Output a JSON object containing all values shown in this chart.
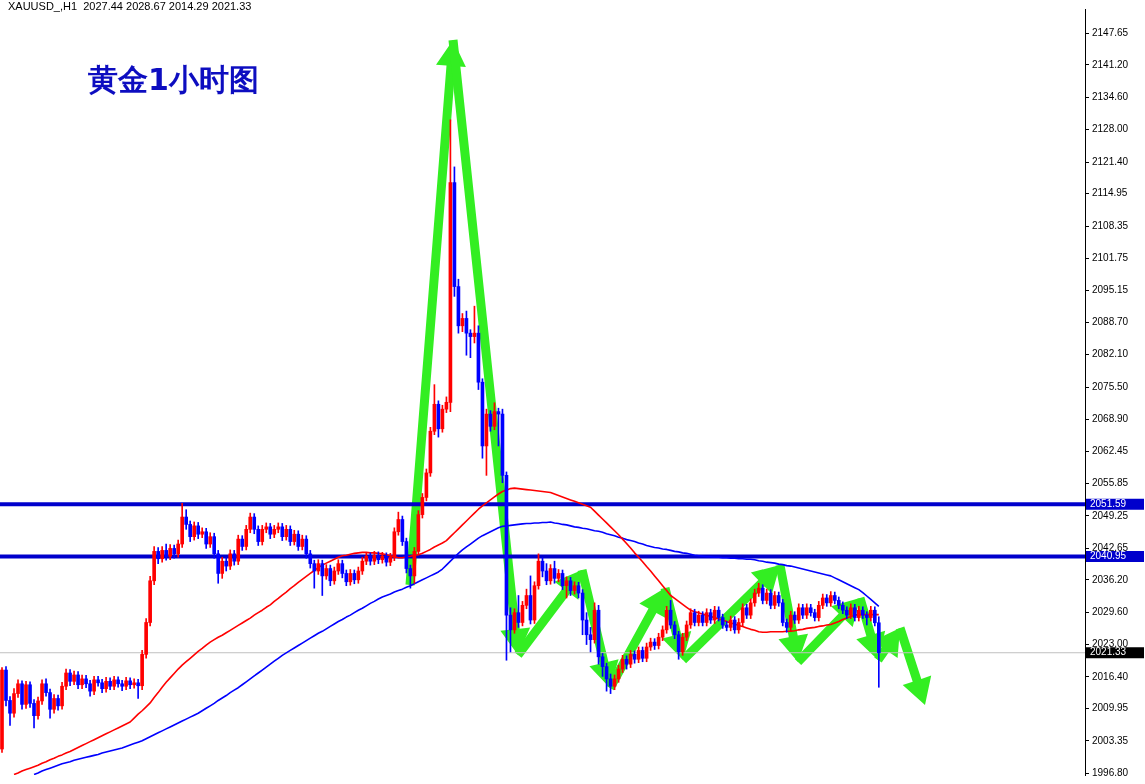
{
  "chart_data": {
    "type": "candlestick",
    "title": "黄金1小时图",
    "subtitle": "XAUUSD_,H1  2027.44 2028.67 2014.29 2021.33",
    "tick_labels": "y",
    "marker": "none",
    "ylim": [
      1996.4,
      2152.6
    ],
    "yticks": [
      {
        "value": 1996.8,
        "label": "1996.80"
      },
      {
        "value": 2003.35,
        "label": "2003.35"
      },
      {
        "value": 2009.95,
        "label": "2009.95"
      },
      {
        "value": 2016.4,
        "label": "2016.40"
      },
      {
        "value": 2023,
        "label": "2023.00"
      },
      {
        "value": 2029.6,
        "label": "2029.60"
      },
      {
        "value": 2036.2,
        "label": "2036.20"
      },
      {
        "value": 2042.65,
        "label": "2042.65"
      },
      {
        "value": 2049.25,
        "label": "2049.25"
      },
      {
        "value": 2055.85,
        "label": "2055.85"
      },
      {
        "value": 2062.45,
        "label": "2062.45"
      },
      {
        "value": 2068.9,
        "label": "2068.90"
      },
      {
        "value": 2075.5,
        "label": "2075.50"
      },
      {
        "value": 2082.1,
        "label": "2082.10"
      },
      {
        "value": 2088.7,
        "label": "2088.70"
      },
      {
        "value": 2095.15,
        "label": "2095.15"
      },
      {
        "value": 2101.75,
        "label": "2101.75"
      },
      {
        "value": 2108.35,
        "label": "2108.35"
      },
      {
        "value": 2114.95,
        "label": "2114.95"
      },
      {
        "value": 2121.4,
        "label": "2121.40"
      },
      {
        "value": 2128,
        "label": "2128.00"
      },
      {
        "value": 2134.6,
        "label": "2134.60"
      },
      {
        "value": 2141.2,
        "label": "2141.20"
      },
      {
        "value": 2147.65,
        "label": "2147.65"
      }
    ],
    "ref_lines": [
      {
        "axis": "y",
        "value": 2051.59,
        "label": "2051.59",
        "color": "#0000cc"
      },
      {
        "axis": "y",
        "value": 2040.95,
        "label": "2040.95",
        "color": "#0000cc"
      },
      {
        "axis": "y",
        "value": 2021.33,
        "label": "2021.33",
        "color": "#c0c0c0"
      }
    ],
    "categories": [
      null,
      null,
      null,
      null,
      null,
      null,
      null,
      null,
      null,
      null,
      null,
      null,
      null,
      null,
      null,
      null,
      null,
      null,
      null,
      null,
      null,
      null,
      null,
      null,
      null,
      null,
      null,
      null,
      null,
      null,
      null,
      null,
      null,
      null,
      null,
      null,
      null,
      null,
      null,
      null,
      null,
      null,
      null,
      null,
      null,
      null,
      null,
      null,
      null,
      null,
      null,
      null,
      null,
      null,
      null,
      null,
      null,
      null,
      null,
      null,
      null,
      null,
      null,
      null,
      null,
      null,
      null,
      null,
      null,
      null,
      null,
      null,
      null,
      null,
      null,
      null,
      null,
      null,
      null,
      null,
      null,
      null,
      null,
      null,
      null,
      null,
      null,
      null,
      null,
      null,
      null,
      null,
      null,
      null,
      null,
      null,
      null,
      null,
      null,
      null,
      null,
      null,
      null,
      null,
      null,
      null,
      null,
      null,
      null,
      null,
      null,
      null,
      null,
      null,
      null,
      null,
      null,
      null,
      null,
      null,
      null,
      null,
      null,
      null,
      null,
      null,
      null,
      null,
      null,
      null,
      null,
      null,
      null,
      null,
      null,
      null,
      null,
      null,
      null,
      null,
      null,
      null,
      null,
      null,
      null,
      null,
      null,
      null,
      null,
      null,
      null,
      null,
      null,
      null,
      null,
      null,
      null,
      null,
      null,
      null,
      null,
      null,
      null,
      null,
      null,
      null,
      null,
      null,
      null,
      null,
      null,
      null,
      null,
      null,
      null,
      null,
      null,
      null,
      null,
      null,
      null,
      null,
      null,
      null,
      null,
      null,
      null,
      null,
      null,
      null,
      null,
      null,
      null,
      null,
      null,
      null,
      null,
      null,
      null,
      null,
      null,
      null,
      null,
      null,
      null,
      null,
      null,
      null,
      null,
      null,
      null,
      null,
      null,
      null,
      null,
      null,
      null,
      null,
      null,
      null,
      null,
      null,
      null,
      null,
      null,
      null,
      null,
      null,
      null,
      null,
      null,
      null,
      null,
      null,
      null,
      null,
      null,
      null,
      null,
      null,
      null,
      null,
      null,
      null,
      null,
      null,
      null,
      null,
      null,
      null,
      null,
      null,
      null,
      null,
      null,
      null,
      null,
      null,
      null,
      null,
      null,
      null,
      null,
      null,
      null,
      null,
      null,
      null,
      null,
      null,
      null
    ],
    "ohlc": [
      [
        2001.7,
        2018.3,
        2001.0,
        2017.8
      ],
      [
        2017.8,
        2018.5,
        2010.5,
        2011.6
      ],
      [
        2011.6,
        2012.4,
        2006.5,
        2009.0
      ],
      [
        2009.0,
        2014.0,
        2008.2,
        2013.0
      ],
      [
        2013.0,
        2015.8,
        2012.2,
        2015.0
      ],
      [
        2015.0,
        2015.6,
        2009.8,
        2010.8
      ],
      [
        2010.8,
        2015.5,
        2010.0,
        2014.8
      ],
      [
        2014.8,
        2015.4,
        2010.2,
        2011.0
      ],
      [
        2011.0,
        2011.8,
        2006.0,
        2008.5
      ],
      [
        2008.5,
        2012.3,
        2007.8,
        2011.5
      ],
      [
        2011.5,
        2015.8,
        2010.8,
        2015.0
      ],
      [
        2015.0,
        2016.0,
        2012.5,
        2013.2
      ],
      [
        2013.2,
        2013.9,
        2008.0,
        2009.8
      ],
      [
        2009.8,
        2012.8,
        2009.0,
        2012.0
      ],
      [
        2012.0,
        2012.7,
        2009.6,
        2010.5
      ],
      [
        2010.5,
        2015.3,
        2009.8,
        2014.5
      ],
      [
        2014.5,
        2018.0,
        2013.8,
        2017.2
      ],
      [
        2017.2,
        2017.9,
        2014.6,
        2015.5
      ],
      [
        2015.5,
        2017.6,
        2014.8,
        2016.8
      ],
      [
        2016.8,
        2017.5,
        2014.0,
        2014.8
      ],
      [
        2014.8,
        2016.8,
        2014.0,
        2016.0
      ],
      [
        2016.0,
        2016.7,
        2014.2,
        2015.0
      ],
      [
        2015.0,
        2015.7,
        2012.5,
        2013.5
      ],
      [
        2013.5,
        2016.5,
        2012.8,
        2015.8
      ],
      [
        2015.8,
        2016.5,
        2014.5,
        2015.2
      ],
      [
        2015.2,
        2015.9,
        2013.2,
        2014.0
      ],
      [
        2014.0,
        2016.3,
        2013.3,
        2015.5
      ],
      [
        2015.5,
        2016.2,
        2013.8,
        2014.5
      ],
      [
        2014.5,
        2016.5,
        2013.8,
        2015.8
      ],
      [
        2015.8,
        2016.4,
        2014.3,
        2015.0
      ],
      [
        2015.0,
        2015.7,
        2013.6,
        2014.5
      ],
      [
        2014.5,
        2016.3,
        2013.8,
        2015.6
      ],
      [
        2015.6,
        2016.2,
        2014.0,
        2014.8
      ],
      [
        2014.8,
        2016.0,
        2014.1,
        2015.2
      ],
      [
        2015.2,
        2015.9,
        2012.0,
        2014.6
      ],
      [
        2014.6,
        2021.8,
        2013.8,
        2021.0
      ],
      [
        2021.0,
        2028.3,
        2020.2,
        2027.5
      ],
      [
        2027.5,
        2036.9,
        2026.8,
        2036.0
      ],
      [
        2036.0,
        2043.0,
        2035.2,
        2042.0
      ],
      [
        2042.0,
        2042.8,
        2039.5,
        2040.5
      ],
      [
        2040.5,
        2043.0,
        2039.8,
        2042.2
      ],
      [
        2042.2,
        2043.5,
        2040.2,
        2041.0
      ],
      [
        2041.0,
        2043.4,
        2040.3,
        2042.6
      ],
      [
        2042.6,
        2043.3,
        2040.6,
        2041.5
      ],
      [
        2041.5,
        2044.3,
        2040.8,
        2043.5
      ],
      [
        2043.5,
        2051.8,
        2042.8,
        2049.0
      ],
      [
        2049.0,
        2050.5,
        2046.5,
        2047.5
      ],
      [
        2047.5,
        2048.2,
        2044.0,
        2045.0
      ],
      [
        2045.0,
        2048.0,
        2044.3,
        2047.2
      ],
      [
        2047.2,
        2047.9,
        2044.6,
        2045.5
      ],
      [
        2045.5,
        2046.8,
        2044.8,
        2046.0
      ],
      [
        2046.0,
        2046.7,
        2042.6,
        2043.5
      ],
      [
        2043.5,
        2045.8,
        2042.8,
        2045.0
      ],
      [
        2045.0,
        2045.7,
        2040.6,
        2041.5
      ],
      [
        2041.5,
        2042.2,
        2035.5,
        2037.5
      ],
      [
        2037.5,
        2040.8,
        2036.5,
        2040.0
      ],
      [
        2040.0,
        2040.7,
        2038.0,
        2039.0
      ],
      [
        2039.0,
        2042.3,
        2038.3,
        2041.5
      ],
      [
        2041.5,
        2042.2,
        2039.2,
        2040.0
      ],
      [
        2040.0,
        2045.3,
        2039.3,
        2044.5
      ],
      [
        2044.5,
        2045.2,
        2042.2,
        2043.0
      ],
      [
        2043.0,
        2047.3,
        2042.3,
        2046.5
      ],
      [
        2046.5,
        2049.8,
        2045.8,
        2049.0
      ],
      [
        2049.0,
        2049.7,
        2045.6,
        2046.5
      ],
      [
        2046.5,
        2047.2,
        2043.2,
        2044.0
      ],
      [
        2044.0,
        2047.3,
        2043.3,
        2046.5
      ],
      [
        2046.5,
        2047.8,
        2045.8,
        2047.0
      ],
      [
        2047.0,
        2047.7,
        2044.6,
        2045.5
      ],
      [
        2045.5,
        2047.3,
        2044.8,
        2046.5
      ],
      [
        2046.5,
        2047.8,
        2045.8,
        2047.0
      ],
      [
        2047.0,
        2047.7,
        2044.2,
        2045.0
      ],
      [
        2045.0,
        2047.3,
        2044.3,
        2046.5
      ],
      [
        2046.5,
        2047.2,
        2043.2,
        2044.0
      ],
      [
        2044.0,
        2046.3,
        2043.3,
        2045.5
      ],
      [
        2045.5,
        2046.2,
        2042.2,
        2043.0
      ],
      [
        2043.0,
        2045.3,
        2042.3,
        2044.5
      ],
      [
        2044.5,
        2045.2,
        2040.6,
        2041.5
      ],
      [
        2041.5,
        2042.2,
        2038.6,
        2039.5
      ],
      [
        2039.5,
        2040.2,
        2034.5,
        2038.0
      ],
      [
        2038.0,
        2040.3,
        2037.3,
        2039.5
      ],
      [
        2039.5,
        2040.2,
        2033.0,
        2037.0
      ],
      [
        2037.0,
        2039.3,
        2036.3,
        2038.5
      ],
      [
        2038.5,
        2039.2,
        2035.0,
        2036.0
      ],
      [
        2036.0,
        2038.8,
        2035.3,
        2038.0
      ],
      [
        2038.0,
        2040.3,
        2037.3,
        2039.5
      ],
      [
        2039.5,
        2040.2,
        2036.6,
        2037.5
      ],
      [
        2037.5,
        2038.2,
        2035.0,
        2035.8
      ],
      [
        2035.8,
        2038.3,
        2035.1,
        2037.5
      ],
      [
        2037.5,
        2038.2,
        2035.4,
        2036.2
      ],
      [
        2036.2,
        2038.8,
        2035.5,
        2038.0
      ],
      [
        2038.0,
        2040.8,
        2037.3,
        2040.0
      ],
      [
        2040.0,
        2041.8,
        2039.3,
        2041.0
      ],
      [
        2041.0,
        2041.7,
        2039.2,
        2040.0
      ],
      [
        2040.0,
        2042.0,
        2039.3,
        2041.2
      ],
      [
        2041.2,
        2041.9,
        2039.5,
        2040.3
      ],
      [
        2040.3,
        2041.8,
        2039.6,
        2041.0
      ],
      [
        2041.0,
        2041.7,
        2039.0,
        2039.8
      ],
      [
        2039.8,
        2041.6,
        2039.1,
        2040.8
      ],
      [
        2040.8,
        2046.8,
        2040.1,
        2046.0
      ],
      [
        2046.0,
        2050.0,
        2045.3,
        2048.5
      ],
      [
        2048.5,
        2049.2,
        2043.2,
        2044.0
      ],
      [
        2044.0,
        2044.7,
        2037.6,
        2038.5
      ],
      [
        2038.5,
        2039.2,
        2034.5,
        2037.0
      ],
      [
        2037.0,
        2042.8,
        2035.5,
        2042.0
      ],
      [
        2042.0,
        2050.3,
        2041.3,
        2049.5
      ],
      [
        2049.5,
        2053.8,
        2048.8,
        2053.0
      ],
      [
        2053.0,
        2058.8,
        2052.3,
        2058.0
      ],
      [
        2058.0,
        2067.3,
        2057.3,
        2066.5
      ],
      [
        2066.5,
        2076.0,
        2065.8,
        2072.0
      ],
      [
        2072.0,
        2072.7,
        2065.3,
        2067.0
      ],
      [
        2067.0,
        2071.8,
        2066.3,
        2071.0
      ],
      [
        2071.0,
        2073.5,
        2070.3,
        2072.4
      ],
      [
        2072.4,
        2130.0,
        2070.5,
        2117.2
      ],
      [
        2117.2,
        2120.4,
        2094.0,
        2096.0
      ],
      [
        2096.0,
        2097.5,
        2086.5,
        2088.0
      ],
      [
        2088.0,
        2090.5,
        2086.8,
        2089.5
      ],
      [
        2089.5,
        2091.0,
        2082.0,
        2086.5
      ],
      [
        2086.5,
        2087.2,
        2081.5,
        2085.8
      ],
      [
        2085.8,
        2092.0,
        2084.5,
        2086.5
      ],
      [
        2086.5,
        2088.0,
        2075.0,
        2076.5
      ],
      [
        2076.5,
        2077.2,
        2061.0,
        2063.5
      ],
      [
        2063.5,
        2071.0,
        2057.5,
        2070.0
      ],
      [
        2070.0,
        2070.7,
        2066.5,
        2067.5
      ],
      [
        2067.5,
        2072.3,
        2066.8,
        2070.5
      ],
      [
        2070.5,
        2071.2,
        2063.5,
        2070.0
      ],
      [
        2070.0,
        2071.0,
        2056.0,
        2057.5
      ],
      [
        2057.5,
        2058.2,
        2019.8,
        2029.0
      ],
      [
        2029.0,
        2030.5,
        2021.5,
        2026.0
      ],
      [
        2026.0,
        2030.3,
        2025.3,
        2029.5
      ],
      [
        2029.5,
        2033.0,
        2026.5,
        2027.5
      ],
      [
        2027.5,
        2031.8,
        2026.8,
        2031.0
      ],
      [
        2031.0,
        2034.3,
        2030.3,
        2033.0
      ],
      [
        2033.0,
        2037.0,
        2027.2,
        2028.0
      ],
      [
        2028.0,
        2035.8,
        2027.3,
        2035.0
      ],
      [
        2035.0,
        2041.5,
        2034.3,
        2040.0
      ],
      [
        2040.0,
        2040.7,
        2036.8,
        2038.0
      ],
      [
        2038.0,
        2039.5,
        2035.2,
        2036.0
      ],
      [
        2036.0,
        2039.3,
        2035.3,
        2038.5
      ],
      [
        2038.5,
        2040.0,
        2035.5,
        2036.5
      ],
      [
        2036.5,
        2038.3,
        2035.8,
        2037.5
      ],
      [
        2037.5,
        2038.2,
        2034.2,
        2035.0
      ],
      [
        2035.0,
        2036.8,
        2032.5,
        2036.0
      ],
      [
        2036.0,
        2036.7,
        2033.0,
        2034.0
      ],
      [
        2034.0,
        2035.8,
        2033.3,
        2035.0
      ],
      [
        2035.0,
        2035.7,
        2032.5,
        2033.5
      ],
      [
        2033.5,
        2034.2,
        2025.0,
        2028.0
      ],
      [
        2028.0,
        2029.5,
        2023.0,
        2025.0
      ],
      [
        2025.0,
        2026.5,
        2021.5,
        2024.0
      ],
      [
        2024.0,
        2031.5,
        2023.3,
        2030.0
      ],
      [
        2030.0,
        2031.0,
        2019.0,
        2020.5
      ],
      [
        2020.5,
        2021.2,
        2016.5,
        2018.5
      ],
      [
        2018.5,
        2019.2,
        2013.5,
        2016.0
      ],
      [
        2016.0,
        2017.0,
        2013.0,
        2014.5
      ],
      [
        2014.5,
        2016.8,
        2013.8,
        2016.0
      ],
      [
        2016.0,
        2018.8,
        2015.3,
        2018.0
      ],
      [
        2018.0,
        2020.8,
        2017.3,
        2020.0
      ],
      [
        2020.0,
        2020.7,
        2018.0,
        2019.0
      ],
      [
        2019.0,
        2021.8,
        2018.3,
        2021.0
      ],
      [
        2021.0,
        2021.7,
        2019.2,
        2020.0
      ],
      [
        2020.0,
        2022.5,
        2019.3,
        2021.8
      ],
      [
        2021.8,
        2022.5,
        2019.5,
        2020.2
      ],
      [
        2020.2,
        2023.3,
        2019.5,
        2022.5
      ],
      [
        2022.5,
        2024.3,
        2021.8,
        2023.5
      ],
      [
        2023.5,
        2024.2,
        2022.0,
        2022.8
      ],
      [
        2022.8,
        2025.3,
        2022.1,
        2024.5
      ],
      [
        2024.5,
        2026.8,
        2023.8,
        2026.0
      ],
      [
        2026.0,
        2030.8,
        2025.3,
        2030.0
      ],
      [
        2030.0,
        2032.0,
        2026.3,
        2027.0
      ],
      [
        2027.0,
        2027.7,
        2024.2,
        2025.0
      ],
      [
        2025.0,
        2025.7,
        2020.0,
        2021.5
      ],
      [
        2021.5,
        2025.3,
        2020.8,
        2024.5
      ],
      [
        2024.5,
        2027.8,
        2023.8,
        2027.0
      ],
      [
        2027.0,
        2030.3,
        2026.3,
        2029.5
      ],
      [
        2029.5,
        2030.2,
        2026.8,
        2027.5
      ],
      [
        2027.5,
        2029.8,
        2026.8,
        2029.0
      ],
      [
        2029.0,
        2029.7,
        2026.8,
        2027.5
      ],
      [
        2027.5,
        2030.3,
        2026.8,
        2029.5
      ],
      [
        2029.5,
        2030.2,
        2027.3,
        2028.0
      ],
      [
        2028.0,
        2030.8,
        2027.3,
        2030.0
      ],
      [
        2030.0,
        2030.7,
        2027.8,
        2028.5
      ],
      [
        2028.5,
        2029.2,
        2026.3,
        2027.0
      ],
      [
        2027.0,
        2027.7,
        2025.8,
        2026.5
      ],
      [
        2026.5,
        2028.8,
        2025.8,
        2028.0
      ],
      [
        2028.0,
        2028.7,
        2025.3,
        2026.0
      ],
      [
        2026.0,
        2028.3,
        2025.3,
        2027.5
      ],
      [
        2027.5,
        2031.3,
        2026.8,
        2030.5
      ],
      [
        2030.5,
        2031.2,
        2028.3,
        2029.0
      ],
      [
        2029.0,
        2032.3,
        2028.3,
        2031.5
      ],
      [
        2031.5,
        2034.3,
        2030.8,
        2033.5
      ],
      [
        2033.5,
        2035.5,
        2032.8,
        2034.5
      ],
      [
        2034.5,
        2035.2,
        2031.3,
        2032.0
      ],
      [
        2032.0,
        2034.3,
        2031.3,
        2033.5
      ],
      [
        2033.5,
        2034.2,
        2030.3,
        2031.0
      ],
      [
        2031.0,
        2033.8,
        2030.3,
        2033.0
      ],
      [
        2033.0,
        2033.7,
        2030.8,
        2031.5
      ],
      [
        2031.5,
        2032.2,
        2026.8,
        2027.5
      ],
      [
        2027.5,
        2028.2,
        2025.5,
        2026.5
      ],
      [
        2026.5,
        2029.8,
        2025.8,
        2029.0
      ],
      [
        2029.0,
        2029.7,
        2027.3,
        2028.0
      ],
      [
        2028.0,
        2031.3,
        2027.3,
        2030.5
      ],
      [
        2030.5,
        2031.2,
        2028.3,
        2029.0
      ],
      [
        2029.0,
        2031.3,
        2028.3,
        2030.5
      ],
      [
        2030.5,
        2031.2,
        2028.8,
        2029.5
      ],
      [
        2029.5,
        2030.2,
        2027.8,
        2028.5
      ],
      [
        2028.5,
        2031.8,
        2027.8,
        2031.0
      ],
      [
        2031.0,
        2033.3,
        2030.3,
        2032.5
      ],
      [
        2032.5,
        2033.2,
        2030.8,
        2031.5
      ],
      [
        2031.5,
        2033.8,
        2030.8,
        2033.0
      ],
      [
        2033.0,
        2033.7,
        2031.3,
        2032.0
      ],
      [
        2032.0,
        2032.7,
        2030.3,
        2031.0
      ],
      [
        2031.0,
        2031.7,
        2029.3,
        2030.0
      ],
      [
        2030.0,
        2030.7,
        2028.3,
        2029.0
      ],
      [
        2029.0,
        2031.3,
        2028.3,
        2030.5
      ],
      [
        2030.5,
        2031.2,
        2027.8,
        2028.5
      ],
      [
        2028.5,
        2030.8,
        2027.8,
        2030.0
      ],
      [
        2030.0,
        2030.7,
        2028.3,
        2029.0
      ],
      [
        2029.0,
        2029.7,
        2027.0,
        2028.5
      ],
      [
        2028.5,
        2030.8,
        2027.8,
        2030.0
      ],
      [
        2030.0,
        2030.7,
        2026.8,
        2027.44
      ],
      [
        2027.44,
        2028.67,
        2014.29,
        2021.33
      ],
      null,
      null,
      null,
      null,
      null,
      null,
      null,
      null,
      null,
      null,
      null,
      null,
      null,
      null,
      null,
      null,
      null,
      null,
      null,
      null,
      null,
      null,
      null,
      null,
      null,
      null,
      null,
      null,
      null,
      null,
      null,
      null,
      null,
      null,
      null,
      null,
      null,
      null,
      null,
      null,
      null,
      null,
      null,
      null,
      null,
      null,
      null,
      null,
      null,
      null,
      null
    ],
    "colors": [
      "#ff0000",
      "#0000ff",
      "#0000ff",
      "#ff0000",
      "#ff0000",
      "#0000ff",
      "#ff0000",
      "#0000ff",
      "#0000ff",
      "#ff0000",
      "#ff0000",
      "#0000ff",
      "#0000ff",
      "#ff0000",
      "#0000ff",
      "#ff0000",
      "#ff0000",
      "#0000ff",
      "#ff0000",
      "#0000ff",
      "#ff0000",
      "#0000ff",
      "#0000ff",
      "#ff0000",
      "#0000ff",
      "#0000ff",
      "#ff0000",
      "#0000ff",
      "#ff0000",
      "#0000ff",
      "#0000ff",
      "#ff0000",
      "#0000ff",
      "#ff0000",
      "#0000ff",
      "#ff0000",
      "#ff0000",
      "#ff0000",
      "#ff0000",
      "#0000ff",
      "#ff0000",
      "#0000ff",
      "#ff0000",
      "#0000ff",
      "#ff0000",
      "#ff0000",
      "#0000ff",
      "#0000ff",
      "#ff0000",
      "#0000ff",
      "#ff0000",
      "#0000ff",
      "#ff0000",
      "#0000ff",
      "#0000ff",
      "#ff0000",
      "#0000ff",
      "#ff0000",
      "#0000ff",
      "#ff0000",
      "#0000ff",
      "#ff0000",
      "#ff0000",
      "#0000ff",
      "#0000ff",
      "#ff0000",
      "#ff0000",
      "#0000ff",
      "#ff0000",
      "#ff0000",
      "#0000ff",
      "#ff0000",
      "#0000ff",
      "#ff0000",
      "#0000ff",
      "#ff0000",
      "#0000ff",
      "#0000ff",
      "#0000ff",
      "#ff0000",
      "#0000ff",
      "#ff0000",
      "#0000ff",
      "#ff0000",
      "#ff0000",
      "#0000ff",
      "#0000ff",
      "#ff0000",
      "#0000ff",
      "#ff0000",
      "#ff0000",
      "#ff0000",
      "#0000ff",
      "#ff0000",
      "#0000ff",
      "#ff0000",
      "#0000ff",
      "#ff0000",
      "#ff0000",
      "#ff0000",
      "#0000ff",
      "#0000ff",
      "#0000ff",
      "#ff0000",
      "#ff0000",
      "#ff0000",
      "#ff0000",
      "#ff0000",
      "#ff0000",
      "#0000ff",
      "#ff0000",
      "#ff0000",
      "#ff0000",
      "#0000ff",
      "#0000ff",
      "#ff0000",
      "#0000ff",
      "#0000ff",
      "#ff0000",
      "#0000ff",
      "#0000ff",
      "#ff0000",
      "#0000ff",
      "#ff0000",
      "#0000ff",
      "#0000ff",
      "#0000ff",
      "#0000ff",
      "#ff0000",
      "#0000ff",
      "#ff0000",
      "#ff0000",
      "#0000ff",
      "#ff0000",
      "#ff0000",
      "#0000ff",
      "#0000ff",
      "#ff0000",
      "#0000ff",
      "#ff0000",
      "#0000ff",
      "#ff0000",
      "#0000ff",
      "#ff0000",
      "#0000ff",
      "#0000ff",
      "#0000ff",
      "#0000ff",
      "#ff0000",
      "#0000ff",
      "#0000ff",
      "#0000ff",
      "#0000ff",
      "#ff0000",
      "#ff0000",
      "#ff0000",
      "#0000ff",
      "#ff0000",
      "#0000ff",
      "#ff0000",
      "#0000ff",
      "#ff0000",
      "#ff0000",
      "#0000ff",
      "#ff0000",
      "#ff0000",
      "#ff0000",
      "#0000ff",
      "#0000ff",
      "#0000ff",
      "#ff0000",
      "#ff0000",
      "#ff0000",
      "#0000ff",
      "#ff0000",
      "#0000ff",
      "#ff0000",
      "#0000ff",
      "#ff0000",
      "#0000ff",
      "#0000ff",
      "#0000ff",
      "#ff0000",
      "#0000ff",
      "#ff0000",
      "#ff0000",
      "#0000ff",
      "#ff0000",
      "#ff0000",
      "#ff0000",
      "#0000ff",
      "#ff0000",
      "#0000ff",
      "#ff0000",
      "#0000ff",
      "#0000ff",
      "#0000ff",
      "#ff0000",
      "#0000ff",
      "#ff0000",
      "#0000ff",
      "#ff0000",
      "#0000ff",
      "#0000ff",
      "#ff0000",
      "#ff0000",
      "#0000ff",
      "#ff0000",
      "#0000ff",
      "#0000ff",
      "#0000ff",
      "#0000ff",
      "#ff0000",
      "#0000ff",
      "#ff0000",
      "#0000ff",
      "#0000ff",
      "#ff0000",
      "#0000ff",
      "#0000ff",
      null,
      null,
      null,
      null,
      null,
      null,
      null,
      null,
      null,
      null,
      null,
      null,
      null,
      null,
      null,
      null,
      null,
      null,
      null,
      null,
      null,
      null,
      null,
      null,
      null,
      null,
      null,
      null,
      null,
      null,
      null,
      null,
      null,
      null,
      null,
      null,
      null,
      null,
      null,
      null,
      null,
      null,
      null,
      null,
      null,
      null,
      null,
      null,
      null,
      null,
      null
    ],
    "series": [
      {
        "type": "line",
        "color": "#ff0000",
        "values": [
          null,
          null,
          null,
          1996.5,
          1996.8,
          1997.2,
          1997.5,
          1997.8,
          1998.1,
          1998.4,
          1998.8,
          1999.1,
          1999.5,
          1999.8,
          2000.2,
          2000.5,
          2000.9,
          2001.2,
          2001.6,
          2002.0,
          2002.4,
          2002.8,
          2003.2,
          2003.6,
          2004.0,
          2004.4,
          2004.8,
          2005.2,
          2005.6,
          2006.0,
          2006.4,
          2006.8,
          2007.2,
          2008.0,
          2008.8,
          2009.5,
          2010.3,
          2011.1,
          2012.2,
          2013.2,
          2014.3,
          2015.3,
          2016.2,
          2017.1,
          2018.0,
          2018.8,
          2019.5,
          2020.2,
          2020.9,
          2021.6,
          2022.2,
          2022.9,
          2023.5,
          2024.0,
          2024.5,
          2024.9,
          2025.4,
          2025.9,
          2026.4,
          2026.9,
          2027.4,
          2027.9,
          2028.4,
          2029.0,
          2029.5,
          2030.0,
          2030.6,
          2031.1,
          2031.8,
          2032.4,
          2033.1,
          2033.7,
          2034.4,
          2035.0,
          2035.7,
          2036.3,
          2036.9,
          2037.5,
          2038.1,
          2038.7,
          2039.2,
          2039.6,
          2040.0,
          2040.4,
          2040.8,
          2041.1,
          2041.2,
          2041.4,
          2041.6,
          2041.7,
          2041.8,
          2041.8,
          2041.7,
          2041.7,
          2041.6,
          2041.5,
          2041.3,
          2041.1,
          2040.9,
          2040.7,
          2040.7,
          2040.9,
          2041.0,
          2041.2,
          2041.3,
          2041.6,
          2042.0,
          2042.4,
          2042.9,
          2043.3,
          2043.7,
          2044.2,
          2045.0,
          2045.8,
          2046.6,
          2047.4,
          2048.2,
          2049.0,
          2049.8,
          2050.6,
          2051.3,
          2051.9,
          2052.5,
          2053.1,
          2053.7,
          2054.2,
          2054.5,
          2054.8,
          2054.9,
          2054.8,
          2054.7,
          2054.6,
          2054.5,
          2054.4,
          2054.3,
          2054.2,
          2054.1,
          2054.0,
          2053.7,
          2053.4,
          2053.1,
          2052.8,
          2052.5,
          2052.2,
          2051.9,
          2051.6,
          2051.3,
          2051.0,
          2050.2,
          2049.4,
          2048.6,
          2047.8,
          2047.0,
          2046.2,
          2045.4,
          2044.5,
          2043.6,
          2042.7,
          2041.7,
          2040.8,
          2039.9,
          2038.9,
          2038.0,
          2037.0,
          2036.0,
          2035.0,
          2034.0,
          2033.0,
          2032.4,
          2031.8,
          2031.2,
          2030.6,
          2030.0,
          2029.7,
          2029.5,
          2029.2,
          2029.0,
          2028.7,
          2028.5,
          2028.2,
          2028.0,
          2027.7,
          2027.4,
          2027.2,
          2026.9,
          2026.7,
          2026.4,
          2026.1,
          2025.9,
          2025.6,
          2025.5,
          2025.5,
          2025.6,
          2025.6,
          2025.6,
          2025.6,
          2025.7,
          2025.7,
          2025.8,
          2026.0,
          2026.1,
          2026.3,
          2026.4,
          2026.5,
          2026.7,
          2026.8,
          2027.0,
          2027.1,
          2027.4,
          2027.7,
          2028.1,
          2028.4,
          2028.7,
          2029.0,
          2029.1,
          2029.1,
          2029.1,
          2029.1,
          2029.1,
          2029.1,
          null,
          null,
          null,
          null,
          null,
          null,
          null,
          null,
          null,
          null,
          null,
          null,
          null,
          null,
          null,
          null,
          null,
          null,
          null,
          null,
          null,
          null,
          null,
          null,
          null,
          null,
          null,
          null,
          null,
          null,
          null,
          null,
          null,
          null,
          null,
          null,
          null,
          null,
          null,
          null,
          null,
          null,
          null,
          null,
          null,
          null,
          null,
          null,
          null,
          null,
          null
        ]
      },
      {
        "type": "line",
        "color": "#0000ff",
        "values": [
          null,
          null,
          null,
          null,
          null,
          null,
          null,
          null,
          1996.5,
          1996.8,
          1997.2,
          1997.5,
          1997.8,
          1998.1,
          1998.4,
          1998.7,
          1998.9,
          1999.1,
          1999.4,
          1999.6,
          1999.8,
          2000.0,
          2000.2,
          2000.4,
          2000.6,
          2000.9,
          2001.1,
          2001.3,
          2001.5,
          2001.7,
          2001.9,
          2002.2,
          2002.5,
          2002.8,
          2003.1,
          2003.4,
          2003.8,
          2004.2,
          2004.6,
          2005.0,
          2005.4,
          2005.8,
          2006.2,
          2006.6,
          2007.0,
          2007.4,
          2007.8,
          2008.2,
          2008.6,
          2009.0,
          2009.5,
          2010.0,
          2010.5,
          2011.0,
          2011.6,
          2012.1,
          2012.6,
          2013.2,
          2013.7,
          2014.2,
          2014.8,
          2015.4,
          2016.0,
          2016.6,
          2017.2,
          2017.8,
          2018.4,
          2019.0,
          2019.6,
          2020.2,
          2020.8,
          2021.3,
          2021.8,
          2022.3,
          2022.8,
          2023.3,
          2023.8,
          2024.3,
          2024.8,
          2025.3,
          2025.7,
          2026.2,
          2026.7,
          2027.2,
          2027.7,
          2028.1,
          2028.6,
          2029.0,
          2029.5,
          2030.0,
          2030.4,
          2030.9,
          2031.4,
          2031.8,
          2032.3,
          2032.7,
          2033.0,
          2033.3,
          2033.7,
          2034.0,
          2034.3,
          2034.7,
          2035.0,
          2035.4,
          2035.8,
          2036.2,
          2036.6,
          2037.0,
          2037.4,
          2037.8,
          2038.4,
          2039.2,
          2040.0,
          2040.8,
          2041.6,
          2042.3,
          2042.9,
          2043.5,
          2044.1,
          2044.7,
          2045.2,
          2045.6,
          2046.0,
          2046.4,
          2046.8,
          2047.1,
          2047.2,
          2047.3,
          2047.4,
          2047.5,
          2047.6,
          2047.7,
          2047.7,
          2047.8,
          2047.8,
          2047.9,
          2047.9,
          2048.0,
          2047.8,
          2047.7,
          2047.5,
          2047.4,
          2047.2,
          2047.0,
          2046.9,
          2046.7,
          2046.6,
          2046.4,
          2046.2,
          2046.1,
          2045.9,
          2045.6,
          2045.4,
          2045.2,
          2044.9,
          2044.7,
          2044.4,
          2044.2,
          2044.0,
          2043.7,
          2043.5,
          2043.2,
          2043.0,
          2042.8,
          2042.7,
          2042.5,
          2042.4,
          2042.2,
          2042.0,
          2041.9,
          2041.7,
          2041.6,
          2041.4,
          2041.2,
          2041.1,
          2041.0,
          2040.9,
          2040.9,
          2040.8,
          2040.8,
          2040.7,
          2040.7,
          2040.6,
          2040.6,
          2040.5,
          2040.5,
          2040.4,
          2040.4,
          2040.3,
          2040.1,
          2040.0,
          2039.8,
          2039.7,
          2039.6,
          2039.4,
          2039.3,
          2039.1,
          2039.0,
          2038.8,
          2038.6,
          2038.4,
          2038.2,
          2038.0,
          2037.8,
          2037.6,
          2037.4,
          2037.2,
          2037.0,
          2036.6,
          2036.2,
          2035.8,
          2035.4,
          2035.0,
          2034.6,
          2034.2,
          2033.6,
          2032.9,
          2032.2,
          2031.5,
          2030.8,
          null,
          null,
          null,
          null,
          null,
          null,
          null,
          null,
          null,
          null,
          null,
          null,
          null,
          null,
          null,
          null,
          null,
          null,
          null,
          null,
          null,
          null,
          null,
          null,
          null,
          null,
          null,
          null,
          null,
          null,
          null,
          null,
          null,
          null,
          null,
          null,
          null,
          null,
          null,
          null,
          null,
          null,
          null,
          null,
          null,
          null,
          null,
          null,
          null,
          null,
          null
        ]
      }
    ]
  }
}
